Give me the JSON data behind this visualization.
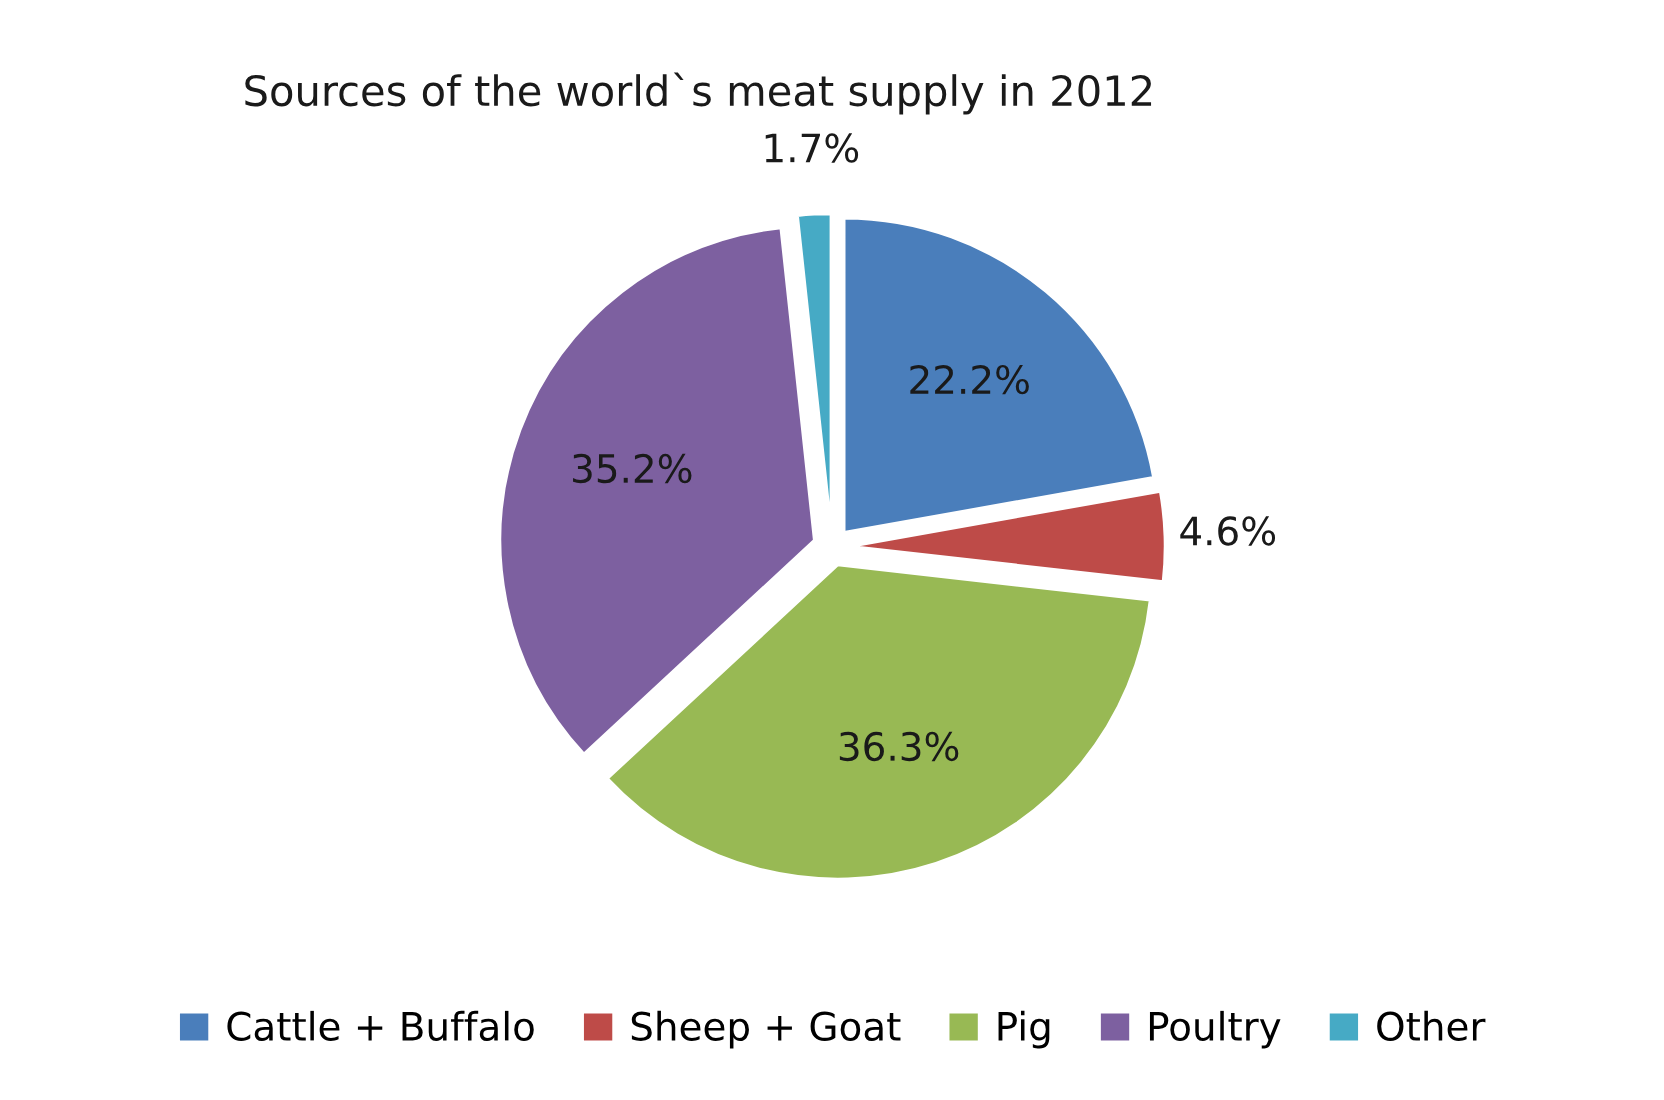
{
  "chart_data": {
    "type": "pie",
    "title": "Sources of the world`s meat supply in 2012",
    "categories": [
      "Cattle + Buffalo",
      "Sheep + Goat",
      "Pig",
      "Poultry",
      "Other"
    ],
    "values": [
      22.2,
      4.6,
      36.3,
      35.2,
      1.7
    ],
    "value_labels": [
      "22.2%",
      "4.6%",
      "36.3%",
      "35.2%",
      "1.7%"
    ],
    "colors": [
      "#4a7ebb",
      "#be4b48",
      "#98b954",
      "#7d60a0",
      "#46aac5"
    ],
    "legend": "bottom"
  }
}
